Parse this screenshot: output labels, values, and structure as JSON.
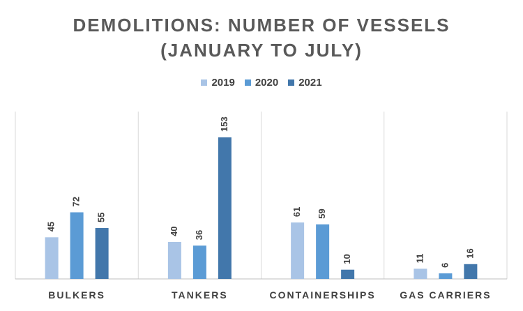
{
  "chart_data": {
    "type": "bar",
    "title_line1": "DEMOLITIONS:  NUMBER  OF  VESSELS",
    "title_line2": "(JANUARY  TO  JULY)",
    "categories": [
      "BULKERS",
      "TANKERS",
      "CONTAINERSHIPS",
      "GAS CARRIERS"
    ],
    "series": [
      {
        "name": "2019",
        "values": [
          45,
          40,
          61,
          11
        ],
        "color": "#a9c4e6"
      },
      {
        "name": "2020",
        "values": [
          72,
          36,
          59,
          6
        ],
        "color": "#5b9bd5"
      },
      {
        "name": "2021",
        "values": [
          55,
          153,
          10,
          16
        ],
        "color": "#4277ab"
      }
    ],
    "ylim": [
      0,
      160
    ],
    "grid": false,
    "legend_position": "top-center",
    "data_labels": true
  }
}
